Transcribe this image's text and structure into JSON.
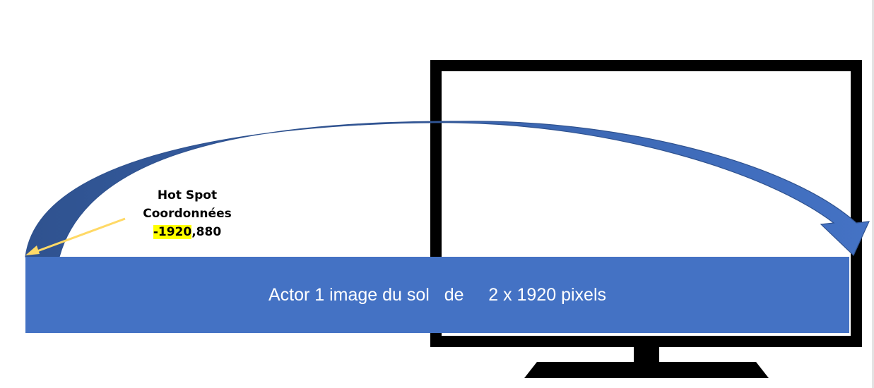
{
  "hotspot": {
    "title": "Hot Spot",
    "subtitle": "Coordonnées",
    "x_value": "-1920",
    "separator": ",",
    "y_value": "880",
    "highlight_color": "#ffff00"
  },
  "ground_bar": {
    "label": "Actor 1 image du sol   de     2 x 1920 pixels",
    "color": "#4472c4"
  },
  "colors": {
    "arc_dark": "#2f528f",
    "arc_light": "#4472c4",
    "pointer_arrow": "#ffd966",
    "monitor": "#000000"
  }
}
